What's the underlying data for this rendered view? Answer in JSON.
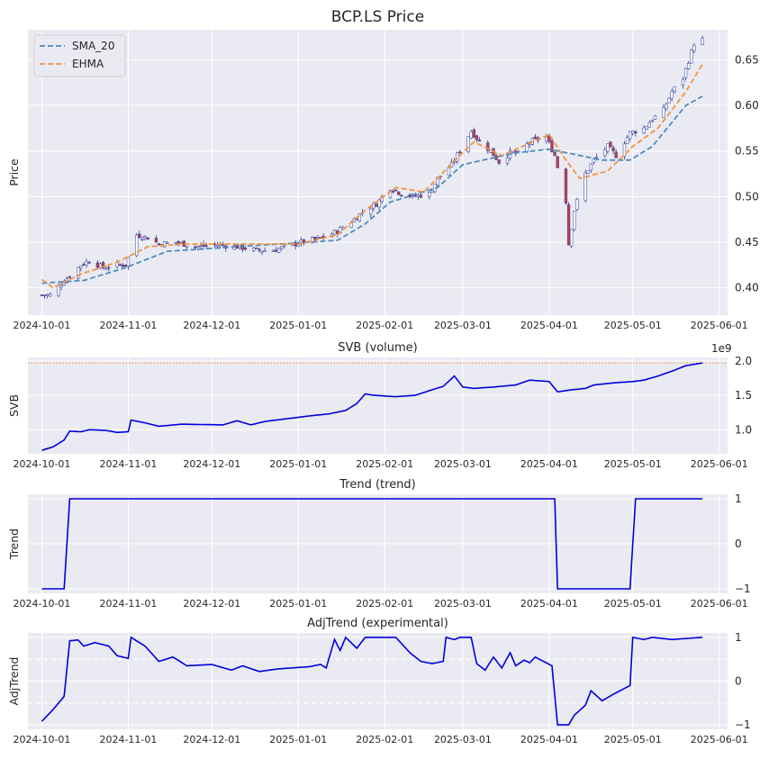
{
  "colors": {
    "panel_bg": "#eaeaf2",
    "grid": "#ffffff",
    "sma": "#4c8cc1",
    "ehma": "#f5923e",
    "line": "#0000dd",
    "candle_up": "#ffffff",
    "candle_down": "#c44040",
    "candle_edge": "#2b3a9a",
    "threshold": "#f0a15a"
  },
  "chart_data": [
    {
      "type": "candlestick",
      "title": "BCP.LS Price",
      "ylabel": "Price",
      "xlim": [
        "2024-09-26",
        "2025-06-04"
      ],
      "ylim": [
        0.37,
        0.683
      ],
      "yticks": [
        0.4,
        0.45,
        0.5,
        0.55,
        0.6,
        0.65
      ],
      "xticks": [
        "2024-10-01",
        "2024-11-01",
        "2024-12-01",
        "2025-01-01",
        "2025-02-01",
        "2025-03-01",
        "2025-04-01",
        "2025-05-01",
        "2025-06-01"
      ],
      "legend": {
        "placement": "top-left",
        "entries": [
          "SMA_20",
          "EHMA"
        ]
      },
      "close_keypoints": [
        [
          "2024-10-01",
          0.392
        ],
        [
          "2024-10-04",
          0.392
        ],
        [
          "2024-10-08",
          0.405
        ],
        [
          "2024-10-11",
          0.413
        ],
        [
          "2024-10-15",
          0.425
        ],
        [
          "2024-10-18",
          0.43
        ],
        [
          "2024-10-23",
          0.422
        ],
        [
          "2024-10-28",
          0.425
        ],
        [
          "2024-10-31",
          0.425
        ],
        [
          "2024-11-04",
          0.458
        ],
        [
          "2024-11-08",
          0.455
        ],
        [
          "2024-11-12",
          0.448
        ],
        [
          "2024-11-18",
          0.45
        ],
        [
          "2024-11-25",
          0.445
        ],
        [
          "2024-12-03",
          0.447
        ],
        [
          "2024-12-10",
          0.445
        ],
        [
          "2024-12-17",
          0.441
        ],
        [
          "2024-12-23",
          0.441
        ],
        [
          "2025-01-02",
          0.45
        ],
        [
          "2025-01-10",
          0.455
        ],
        [
          "2025-01-15",
          0.462
        ],
        [
          "2025-01-21",
          0.475
        ],
        [
          "2025-01-24",
          0.483
        ],
        [
          "2025-01-29",
          0.492
        ],
        [
          "2025-02-03",
          0.51
        ],
        [
          "2025-02-07",
          0.503
        ],
        [
          "2025-02-11",
          0.5
        ],
        [
          "2025-02-17",
          0.503
        ],
        [
          "2025-02-20",
          0.52
        ],
        [
          "2025-02-25",
          0.535
        ],
        [
          "2025-03-04",
          0.572
        ],
        [
          "2025-03-07",
          0.56
        ],
        [
          "2025-03-11",
          0.55
        ],
        [
          "2025-03-14",
          0.538
        ],
        [
          "2025-03-18",
          0.548
        ],
        [
          "2025-03-21",
          0.547
        ],
        [
          "2025-03-25",
          0.56
        ],
        [
          "2025-03-31",
          0.565
        ],
        [
          "2025-04-03",
          0.545
        ],
        [
          "2025-04-07",
          0.495
        ],
        [
          "2025-04-08",
          0.448
        ],
        [
          "2025-04-10",
          0.485
        ],
        [
          "2025-04-14",
          0.525
        ],
        [
          "2025-04-17",
          0.54
        ],
        [
          "2025-04-22",
          0.555
        ],
        [
          "2025-04-25",
          0.545
        ],
        [
          "2025-04-30",
          0.57
        ],
        [
          "2025-05-05",
          0.575
        ],
        [
          "2025-05-08",
          0.585
        ],
        [
          "2025-05-12",
          0.595
        ],
        [
          "2025-05-15",
          0.615
        ],
        [
          "2025-05-19",
          0.63
        ],
        [
          "2025-05-23",
          0.668
        ],
        [
          "2025-05-26",
          0.672
        ]
      ],
      "sma_20_keypoints": [
        [
          "2024-10-01",
          0.405
        ],
        [
          "2024-10-16",
          0.408
        ],
        [
          "2024-10-31",
          0.422
        ],
        [
          "2024-11-15",
          0.44
        ],
        [
          "2024-12-15",
          0.446
        ],
        [
          "2025-01-15",
          0.452
        ],
        [
          "2025-01-25",
          0.47
        ],
        [
          "2025-02-03",
          0.494
        ],
        [
          "2025-02-20",
          0.51
        ],
        [
          "2025-03-01",
          0.535
        ],
        [
          "2025-03-20",
          0.548
        ],
        [
          "2025-04-01",
          0.552
        ],
        [
          "2025-04-20",
          0.54
        ],
        [
          "2025-04-30",
          0.54
        ],
        [
          "2025-05-08",
          0.555
        ],
        [
          "2025-05-20",
          0.6
        ],
        [
          "2025-05-26",
          0.61
        ]
      ],
      "ehma_keypoints": [
        [
          "2024-10-01",
          0.409
        ],
        [
          "2024-10-05",
          0.4
        ],
        [
          "2024-10-15",
          0.415
        ],
        [
          "2024-10-28",
          0.428
        ],
        [
          "2024-11-08",
          0.445
        ],
        [
          "2024-11-20",
          0.448
        ],
        [
          "2025-01-01",
          0.448
        ],
        [
          "2025-01-15",
          0.458
        ],
        [
          "2025-01-25",
          0.485
        ],
        [
          "2025-02-05",
          0.51
        ],
        [
          "2025-02-15",
          0.505
        ],
        [
          "2025-02-28",
          0.545
        ],
        [
          "2025-03-05",
          0.56
        ],
        [
          "2025-03-15",
          0.545
        ],
        [
          "2025-04-01",
          0.568
        ],
        [
          "2025-04-07",
          0.54
        ],
        [
          "2025-04-12",
          0.52
        ],
        [
          "2025-04-22",
          0.528
        ],
        [
          "2025-05-01",
          0.555
        ],
        [
          "2025-05-10",
          0.575
        ],
        [
          "2025-05-20",
          0.615
        ],
        [
          "2025-05-26",
          0.645
        ]
      ]
    },
    {
      "type": "line",
      "title": "SVB (volume)",
      "ylabel": "SVB",
      "offset_label": "1e9",
      "xlim": [
        "2024-09-26",
        "2025-06-04"
      ],
      "ylim": [
        0.65,
        2.05
      ],
      "yticks": [
        1.0,
        1.5,
        2.0
      ],
      "threshold_y": 1.97,
      "xticks": [
        "2024-10-01",
        "2024-11-01",
        "2024-12-01",
        "2025-01-01",
        "2025-02-01",
        "2025-03-01",
        "2025-04-01",
        "2025-05-01",
        "2025-06-01"
      ],
      "keypoints": [
        [
          "2024-10-01",
          0.7
        ],
        [
          "2024-10-05",
          0.75
        ],
        [
          "2024-10-09",
          0.85
        ],
        [
          "2024-10-11",
          0.98
        ],
        [
          "2024-10-15",
          0.97
        ],
        [
          "2024-10-18",
          1.0
        ],
        [
          "2024-10-24",
          0.99
        ],
        [
          "2024-10-28",
          0.96
        ],
        [
          "2024-11-01",
          0.97
        ],
        [
          "2024-11-02",
          1.14
        ],
        [
          "2024-11-07",
          1.1
        ],
        [
          "2024-11-12",
          1.05
        ],
        [
          "2024-11-20",
          1.08
        ],
        [
          "2024-12-05",
          1.07
        ],
        [
          "2024-12-10",
          1.13
        ],
        [
          "2024-12-15",
          1.07
        ],
        [
          "2024-12-20",
          1.12
        ],
        [
          "2024-12-28",
          1.16
        ],
        [
          "2025-01-05",
          1.2
        ],
        [
          "2025-01-12",
          1.23
        ],
        [
          "2025-01-18",
          1.28
        ],
        [
          "2025-01-22",
          1.38
        ],
        [
          "2025-01-25",
          1.52
        ],
        [
          "2025-01-28",
          1.5
        ],
        [
          "2025-02-05",
          1.48
        ],
        [
          "2025-02-12",
          1.5
        ],
        [
          "2025-02-18",
          1.58
        ],
        [
          "2025-02-22",
          1.63
        ],
        [
          "2025-02-26",
          1.78
        ],
        [
          "2025-03-01",
          1.62
        ],
        [
          "2025-03-05",
          1.6
        ],
        [
          "2025-03-12",
          1.62
        ],
        [
          "2025-03-20",
          1.65
        ],
        [
          "2025-03-25",
          1.72
        ],
        [
          "2025-04-01",
          1.7
        ],
        [
          "2025-04-04",
          1.55
        ],
        [
          "2025-04-09",
          1.58
        ],
        [
          "2025-04-14",
          1.6
        ],
        [
          "2025-04-17",
          1.65
        ],
        [
          "2025-04-24",
          1.68
        ],
        [
          "2025-05-01",
          1.7
        ],
        [
          "2025-05-05",
          1.72
        ],
        [
          "2025-05-10",
          1.78
        ],
        [
          "2025-05-15",
          1.85
        ],
        [
          "2025-05-20",
          1.93
        ],
        [
          "2025-05-26",
          1.97
        ]
      ]
    },
    {
      "type": "line",
      "title": "Trend (trend)",
      "ylabel": "Trend",
      "xlim": [
        "2024-09-26",
        "2025-06-04"
      ],
      "ylim": [
        -1.1,
        1.1
      ],
      "yticks": [
        -1,
        0,
        1
      ],
      "xticks": [
        "2024-10-01",
        "2024-11-01",
        "2024-12-01",
        "2025-01-01",
        "2025-02-01",
        "2025-03-01",
        "2025-04-01",
        "2025-05-01",
        "2025-06-01"
      ],
      "keypoints": [
        [
          "2024-10-01",
          -1
        ],
        [
          "2024-10-09",
          -1
        ],
        [
          "2024-10-11",
          1
        ],
        [
          "2025-04-03",
          1
        ],
        [
          "2025-04-04",
          -1
        ],
        [
          "2025-04-30",
          -1
        ],
        [
          "2025-05-02",
          1
        ],
        [
          "2025-05-26",
          1
        ]
      ]
    },
    {
      "type": "line",
      "title": "AdjTrend (experimental)",
      "ylabel": "AdjTrend",
      "xlim": [
        "2024-09-26",
        "2025-06-04"
      ],
      "ylim": [
        -1.1,
        1.1
      ],
      "yticks": [
        -1,
        0,
        1
      ],
      "hlines": [
        0.5,
        -0.5
      ],
      "xticks": [
        "2024-10-01",
        "2024-11-01",
        "2024-12-01",
        "2025-01-01",
        "2025-02-01",
        "2025-03-01",
        "2025-04-01",
        "2025-05-01",
        "2025-06-01"
      ],
      "keypoints": [
        [
          "2024-10-01",
          -0.92
        ],
        [
          "2024-10-05",
          -0.65
        ],
        [
          "2024-10-09",
          -0.35
        ],
        [
          "2024-10-11",
          0.92
        ],
        [
          "2024-10-14",
          0.94
        ],
        [
          "2024-10-16",
          0.8
        ],
        [
          "2024-10-20",
          0.88
        ],
        [
          "2024-10-25",
          0.8
        ],
        [
          "2024-10-28",
          0.58
        ],
        [
          "2024-11-01",
          0.52
        ],
        [
          "2024-11-02",
          1.0
        ],
        [
          "2024-11-07",
          0.8
        ],
        [
          "2024-11-12",
          0.45
        ],
        [
          "2024-11-17",
          0.55
        ],
        [
          "2024-11-22",
          0.35
        ],
        [
          "2024-12-01",
          0.38
        ],
        [
          "2024-12-08",
          0.25
        ],
        [
          "2024-12-12",
          0.35
        ],
        [
          "2024-12-18",
          0.22
        ],
        [
          "2024-12-25",
          0.28
        ],
        [
          "2025-01-05",
          0.33
        ],
        [
          "2025-01-09",
          0.38
        ],
        [
          "2025-01-11",
          0.3
        ],
        [
          "2025-01-14",
          0.95
        ],
        [
          "2025-01-16",
          0.7
        ],
        [
          "2025-01-18",
          1.0
        ],
        [
          "2025-01-22",
          0.75
        ],
        [
          "2025-01-25",
          1.0
        ],
        [
          "2025-02-05",
          1.0
        ],
        [
          "2025-02-10",
          0.65
        ],
        [
          "2025-02-14",
          0.45
        ],
        [
          "2025-02-18",
          0.4
        ],
        [
          "2025-02-22",
          0.45
        ],
        [
          "2025-02-23",
          1.0
        ],
        [
          "2025-02-26",
          0.95
        ],
        [
          "2025-02-28",
          1.0
        ],
        [
          "2025-03-04",
          1.0
        ],
        [
          "2025-03-06",
          0.4
        ],
        [
          "2025-03-09",
          0.25
        ],
        [
          "2025-03-12",
          0.55
        ],
        [
          "2025-03-15",
          0.3
        ],
        [
          "2025-03-18",
          0.65
        ],
        [
          "2025-03-20",
          0.35
        ],
        [
          "2025-03-23",
          0.48
        ],
        [
          "2025-03-25",
          0.42
        ],
        [
          "2025-03-27",
          0.55
        ],
        [
          "2025-04-02",
          0.35
        ],
        [
          "2025-04-04",
          -1.0
        ],
        [
          "2025-04-08",
          -1.0
        ],
        [
          "2025-04-10",
          -0.78
        ],
        [
          "2025-04-14",
          -0.55
        ],
        [
          "2025-04-16",
          -0.22
        ],
        [
          "2025-04-20",
          -0.45
        ],
        [
          "2025-04-24",
          -0.3
        ],
        [
          "2025-04-30",
          -0.1
        ],
        [
          "2025-05-01",
          1.0
        ],
        [
          "2025-05-05",
          0.95
        ],
        [
          "2025-05-08",
          1.0
        ],
        [
          "2025-05-15",
          0.95
        ],
        [
          "2025-05-26",
          1.0
        ]
      ]
    }
  ]
}
